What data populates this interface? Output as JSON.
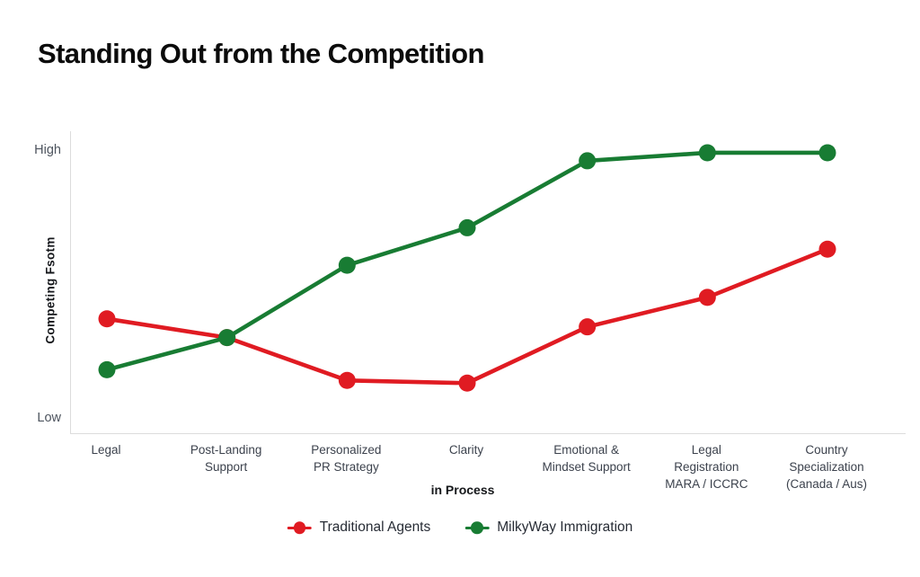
{
  "chart_data": {
    "type": "line",
    "title": "Standing Out from the Competition",
    "xlabel": "in Process",
    "ylabel": "Competing Fsotm",
    "ylim": [
      0,
      100
    ],
    "ytick_labels": [
      "Low",
      "High"
    ],
    "grid": false,
    "legend_position": "bottom",
    "axis_color": "#dcdcdc",
    "categories": [
      "Legal",
      "Post-Landing\nSupport",
      "Personalized\nPR Strategy",
      "Clarity",
      "Emotional &\nMindset Support",
      "Legal\nRegistration\nMARA / ICCRC",
      "Country\nSpecialization\n(Canada / Aus)"
    ],
    "series": [
      {
        "name": "Traditional Agents",
        "color": "#e01b22",
        "values": [
          37,
          30,
          14,
          13,
          34,
          45,
          63
        ]
      },
      {
        "name": "MilkyWay Immigration",
        "color": "#187c33",
        "values": [
          18,
          30,
          57,
          71,
          96,
          99,
          99
        ]
      }
    ]
  }
}
